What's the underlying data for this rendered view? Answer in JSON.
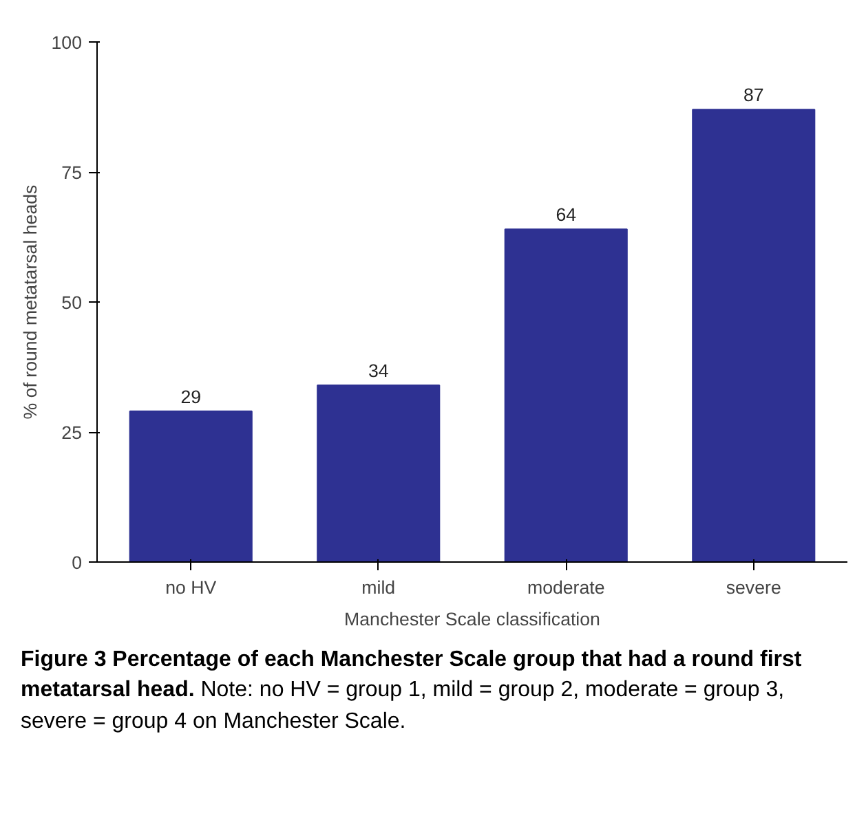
{
  "chart_data": {
    "type": "bar",
    "title": "Figure 3 Percentage of each Manchester Scale group that had a round first metatarsal head.",
    "annotations": [
      "Note: no HV = group 1, mild = group 2, moderate = group 3, severe = group 4 on Manchester Scale."
    ],
    "xlabel": "Manchester Scale classification",
    "ylabel": "% of round metatarsal heads",
    "categories": [
      "no HV",
      "mild",
      "moderate",
      "severe"
    ],
    "values": [
      29,
      34,
      64,
      87
    ],
    "color": "#2e3192",
    "ylim": [
      0,
      100
    ],
    "yticks": [
      0,
      25,
      50,
      75,
      100
    ],
    "grid": false,
    "data_labels": true
  }
}
